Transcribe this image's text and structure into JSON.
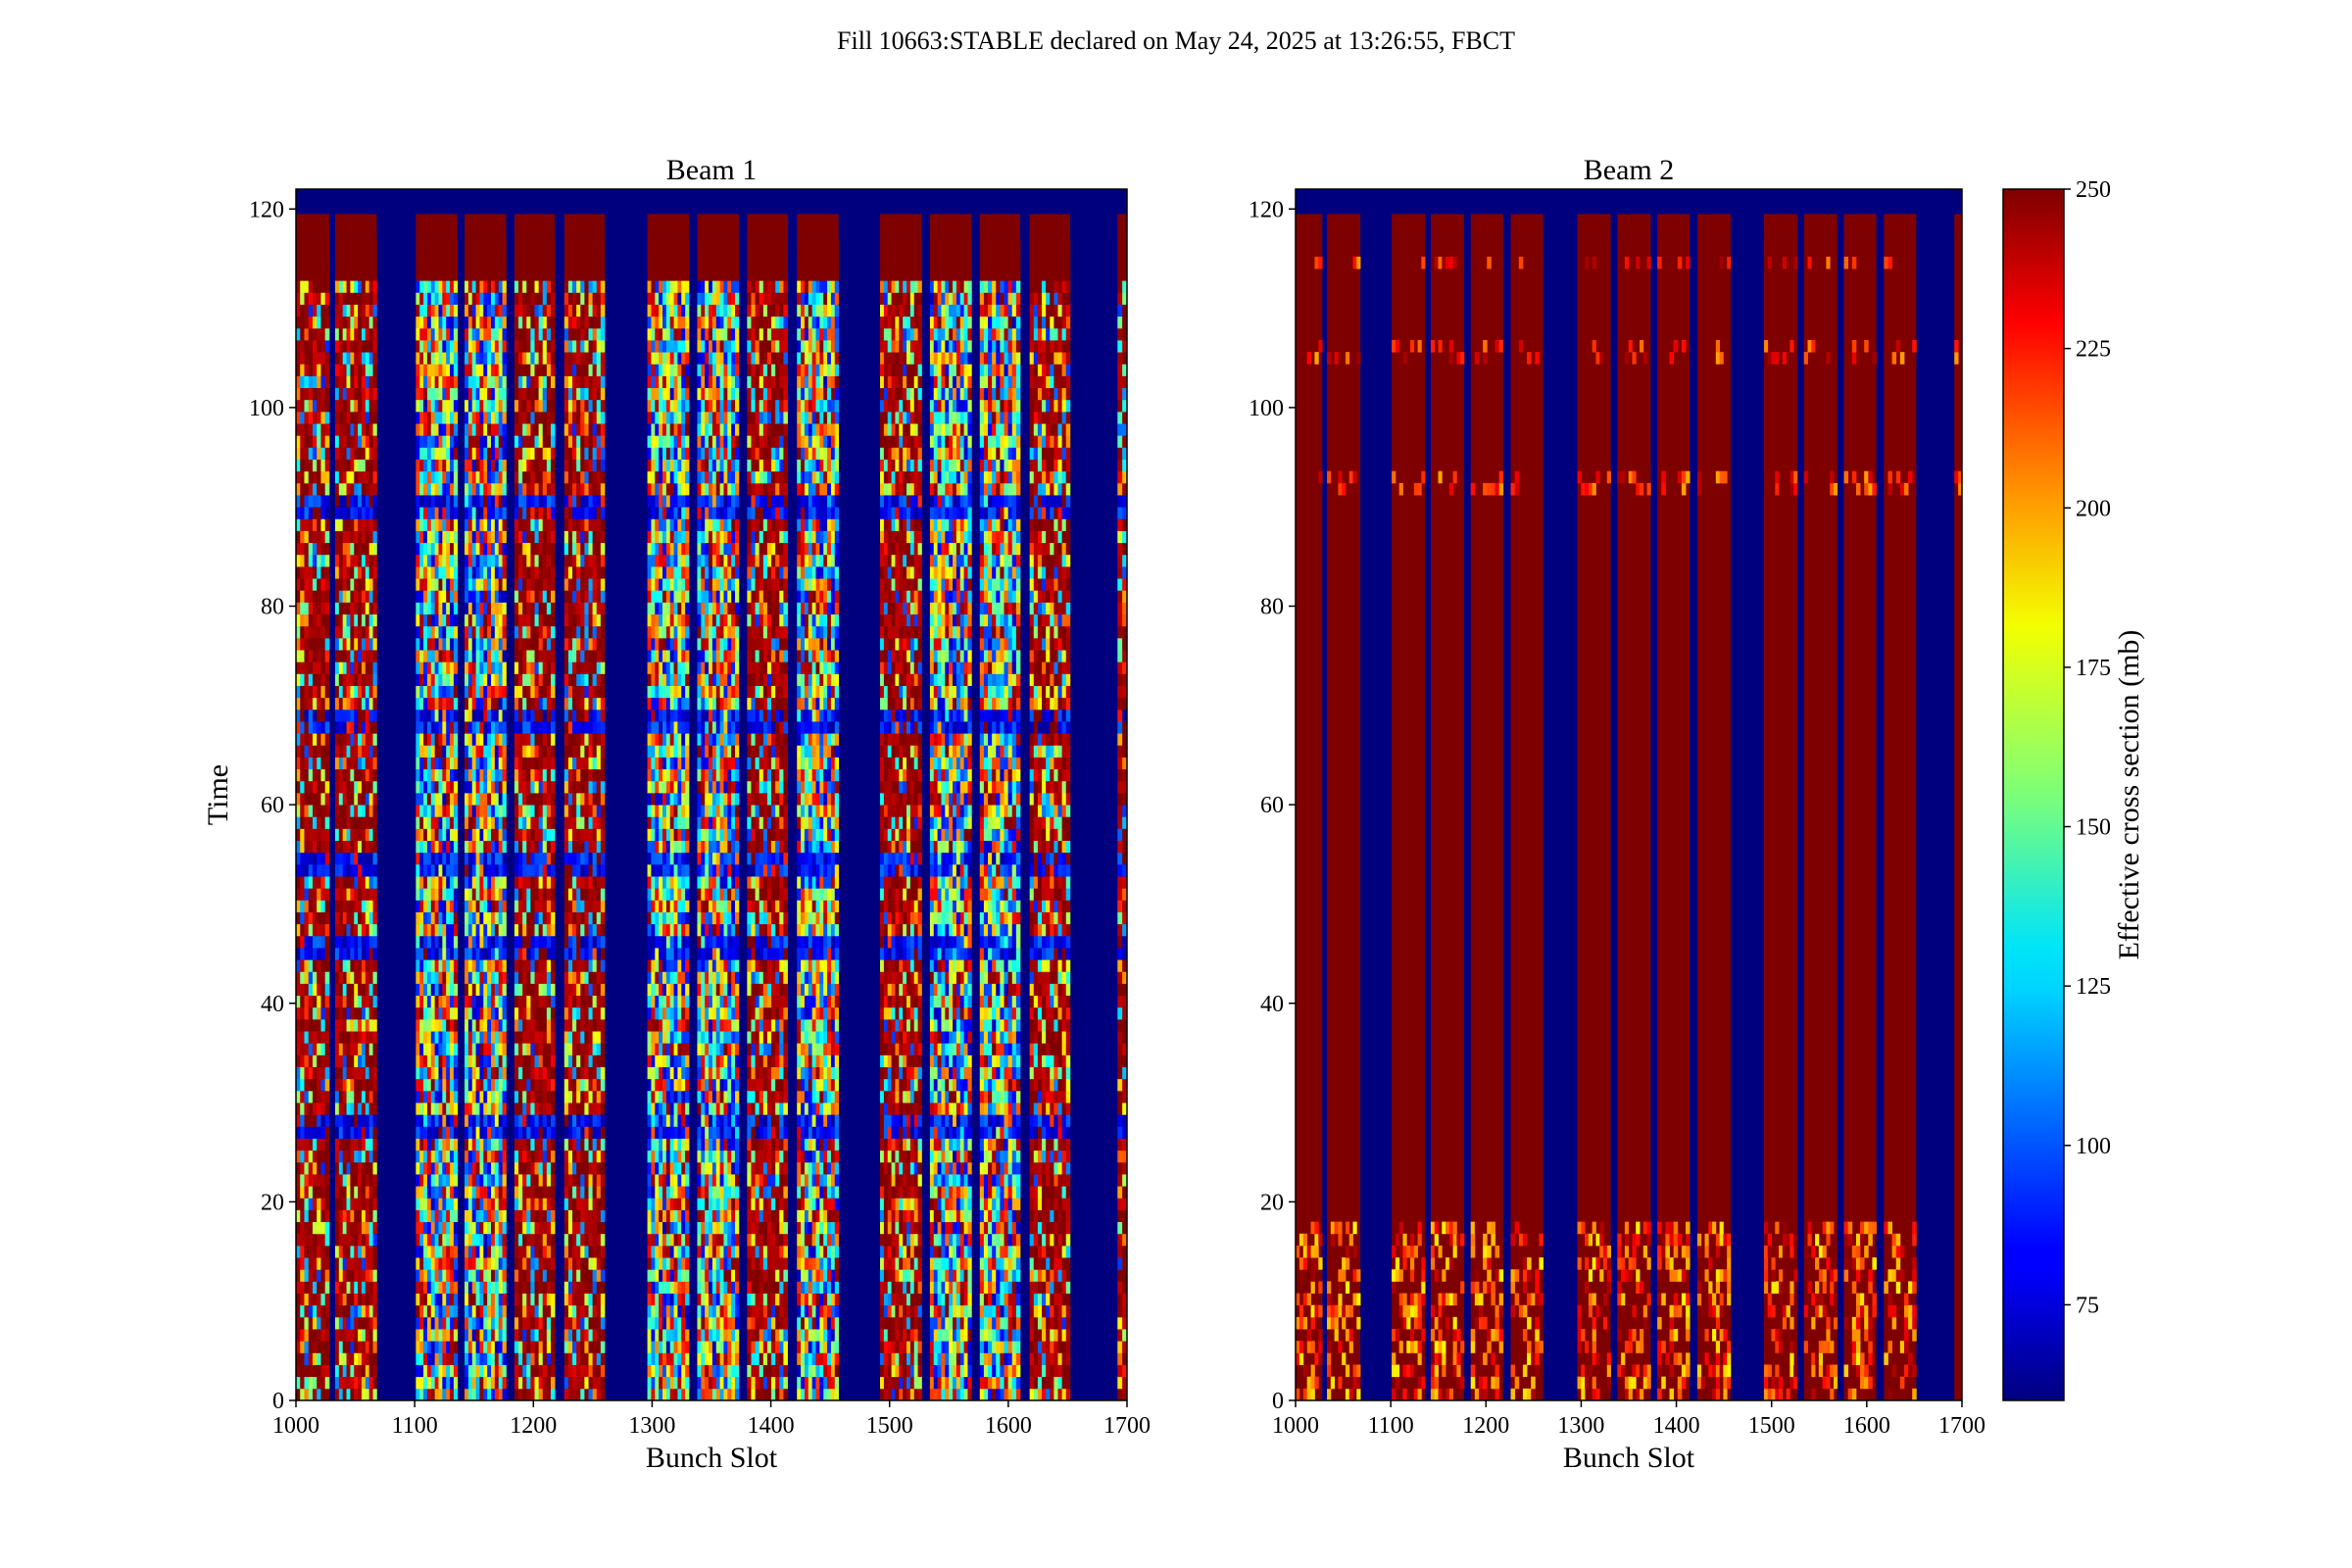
{
  "figure": {
    "title": "Fill 10663:STABLE declared on May 24, 2025 at 13:26:55, FBCT"
  },
  "chart_data": [
    {
      "type": "heatmap",
      "title": "Beam 1",
      "xlabel": "Bunch Slot",
      "ylabel": "Time",
      "xlim": [
        1000,
        1700
      ],
      "ylim": [
        0,
        122
      ],
      "xticks": [
        1000,
        1100,
        1200,
        1300,
        1400,
        1500,
        1600,
        1700
      ],
      "yticks": [
        0,
        20,
        40,
        60,
        80,
        100,
        120
      ],
      "filled_time_range": [
        0,
        119.5
      ],
      "filled_bunch_trains": [
        [
          1000,
          1028
        ],
        [
          1033,
          1068
        ],
        [
          1101,
          1136
        ],
        [
          1142,
          1177
        ],
        [
          1184,
          1218
        ],
        [
          1226,
          1260
        ],
        [
          1296,
          1331
        ],
        [
          1338,
          1373
        ],
        [
          1380,
          1414
        ],
        [
          1422,
          1457
        ],
        [
          1492,
          1527
        ],
        [
          1534,
          1569
        ],
        [
          1576,
          1610
        ],
        [
          1618,
          1652
        ],
        [
          1692,
          1700
        ]
      ],
      "color_pattern": "strongly fluctuating values between ~75 and 250 mb across all trains, with saturated red regions in several trains and horizontal dip lines near times 27, 45, 53, 68 and 89"
    },
    {
      "type": "heatmap",
      "title": "Beam 2",
      "xlabel": "Bunch Slot",
      "ylabel": "",
      "xlim": [
        1000,
        1700
      ],
      "ylim": [
        0,
        122
      ],
      "xticks": [
        1000,
        1100,
        1200,
        1300,
        1400,
        1500,
        1600,
        1700
      ],
      "yticks": [
        0,
        20,
        40,
        60,
        80,
        100,
        120
      ],
      "filled_time_range": [
        0,
        119.5
      ],
      "filled_bunch_trains": [
        [
          1000,
          1028
        ],
        [
          1033,
          1068
        ],
        [
          1101,
          1136
        ],
        [
          1142,
          1177
        ],
        [
          1184,
          1218
        ],
        [
          1226,
          1260
        ],
        [
          1296,
          1331
        ],
        [
          1338,
          1373
        ],
        [
          1380,
          1414
        ],
        [
          1422,
          1457
        ],
        [
          1492,
          1527
        ],
        [
          1534,
          1569
        ],
        [
          1576,
          1610
        ],
        [
          1618,
          1652
        ],
        [
          1692,
          1700
        ]
      ],
      "color_pattern": "mostly saturated at 250 mb; fluctuating 175-250 mb in the first ~18 time units and sparse lighter specks near times 92 and 104-115"
    }
  ],
  "colorbar": {
    "label": "Effective cross section (mb)",
    "colormap": "jet",
    "range": [
      60,
      250
    ],
    "ticks": [
      75,
      100,
      125,
      150,
      175,
      200,
      225,
      250
    ]
  },
  "colors": {
    "empty_slot": "#00007f",
    "saturated": "#7f0000"
  }
}
